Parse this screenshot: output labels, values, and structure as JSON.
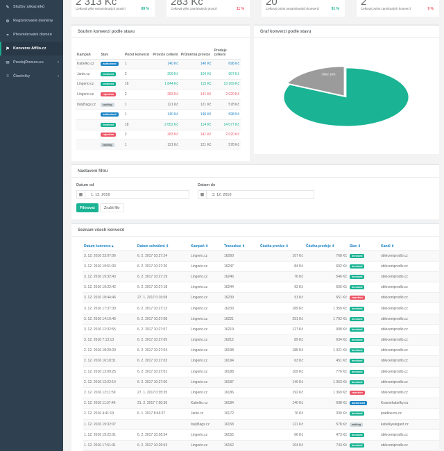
{
  "sidebar": {
    "items": [
      {
        "label": "Služby zákazníků",
        "icon": "wrench-icon",
        "glyph": "✎"
      },
      {
        "label": "Registrované domény",
        "icon": "globe-icon",
        "glyph": "⊕"
      },
      {
        "label": "Přesměrování domén",
        "icon": "link-icon",
        "glyph": "⚭"
      },
      {
        "label": "Konverze Affilo.cz",
        "icon": "flag-icon",
        "glyph": "⚑"
      },
      {
        "label": "ProdejDomen.eu",
        "icon": "cart-icon",
        "glyph": "✉"
      },
      {
        "label": "Číselníky",
        "icon": "list-icon",
        "glyph": "≡"
      }
    ],
    "chevron": "‹"
  },
  "stats": [
    {
      "value": "2 313 Kč",
      "label": "Celková výše nezamítnutých provizí",
      "pct": "89 %",
      "pct_color": "#1ab394"
    },
    {
      "value": "283 Kč",
      "label": "Celková výše zamítnutých provizí",
      "pct": "11 %",
      "pct_color": "#ed5565"
    },
    {
      "value": "20",
      "label": "Celkový počet nezamítnutých konverzí",
      "pct": "91 %",
      "pct_color": "#1ab394"
    },
    {
      "value": "2",
      "label": "Celkový počet zamítnutých konverzí",
      "pct": "9 %",
      "pct_color": "#ed5565"
    }
  ],
  "summary": {
    "title": "Souhrn konverzí podle stavu",
    "headers": [
      "Kampaň",
      "Stav",
      "Počet konverzí",
      "Provize celkem",
      "Průměrná provize",
      "Prodeje celkem"
    ],
    "rows": [
      {
        "campaign": "Kabelko.cz",
        "status": "authorized",
        "count": "1",
        "commission": "140 Kč",
        "avg": "140 Kč",
        "sales": "698 Kč",
        "color": "blue"
      },
      {
        "campaign": "Janie.cz",
        "status": "invoiced",
        "count": "2",
        "commission": "209 Kč",
        "avg": "104 Kč",
        "sales": "907 Kč",
        "color": "teal"
      },
      {
        "campaign": "Lingerio.cz",
        "status": "invoiced",
        "count": "16",
        "commission": "1 844 Kč",
        "avg": "115 Kč",
        "sales": "13 169 Kč",
        "color": "teal"
      },
      {
        "campaign": "Lingerio.cz",
        "status": "rejection",
        "count": "2",
        "commission": "283 Kč",
        "avg": "141 Kč",
        "sales": "2 020 Kč",
        "color": "red"
      },
      {
        "campaign": "ItalyBags.cz",
        "status": "waiting",
        "count": "1",
        "commission": "121 Kč",
        "avg": "121 Kč",
        "sales": "578 Kč",
        "color": "plain"
      },
      {
        "campaign": "",
        "status": "authorized",
        "count": "1",
        "commission": "140 Kč",
        "avg": "140 Kč",
        "sales": "698 Kč",
        "color": "blue"
      },
      {
        "campaign": "",
        "status": "invoiced",
        "count": "18",
        "commission": "2 052 Kč",
        "avg": "114 Kč",
        "sales": "14 077 Kč",
        "color": "teal"
      },
      {
        "campaign": "",
        "status": "rejection",
        "count": "2",
        "commission": "283 Kč",
        "avg": "141 Kč",
        "sales": "2 020 Kč",
        "color": "red"
      },
      {
        "campaign": "",
        "status": "waiting",
        "count": "1",
        "commission": "121 Kč",
        "avg": "121 Kč",
        "sales": "578 Kč",
        "color": "plain"
      }
    ]
  },
  "chart": {
    "title": "Graf konverzí podle stavu",
    "colors": {
      "invoiced": "#1ab394",
      "waiting": "#9b9b9b",
      "authorized": "#1c84c6",
      "rejection": "#ed5565"
    }
  },
  "chart_data": {
    "type": "pie",
    "slices": [
      {
        "label": "Invoiced",
        "value": 82,
        "display": "invoiced 82%"
      },
      {
        "label": "Other",
        "value": 18,
        "display": "Other 18%"
      }
    ]
  },
  "filter": {
    "title": "Nastavení filtru",
    "from_label": "Datum od",
    "from_value": "1. 12. 2016",
    "to_label": "Datum do",
    "to_value": "3. 12. 2016",
    "submit": "Filtrovat",
    "reset": "Zrušit filtr",
    "cal_glyph": "▦"
  },
  "conversions": {
    "title": "Seznam všech konverzí",
    "headers": [
      "Datum konverze ▴",
      "Datum schválení ⇕",
      "Kampaň ⇕",
      "Transakce ⇕",
      "Částka provize ⇕",
      "Částka prodeje ⇕",
      "Stav ⇕",
      "Kanál ⇕"
    ],
    "rows": [
      [
        "3. 12. 2016 23:07:06",
        "6. 2. 2017 10:27:24",
        "Lingerio.cz",
        "16260",
        "107 Kč",
        "768 Kč",
        "invoiced",
        "obleceniprodlo.cz"
      ],
      [
        "3. 12. 2016 19:51:03",
        "6. 2. 2017 10:27:20",
        "Lingerio.cz",
        "16247",
        "84 Kč",
        "602 Kč",
        "invoiced",
        "obleceniprodlo.cz"
      ],
      [
        "3. 12. 2016 19:32:43",
        "6. 2. 2017 10:27:19",
        "Lingerio.cz",
        "16246",
        "76 Kč",
        "546 Kč",
        "invoiced",
        "obleceniprodlo.cz"
      ],
      [
        "3. 12. 2016 19:22:42",
        "6. 2. 2017 10:27:18",
        "Lingerio.cz",
        "16244",
        "93 Kč",
        "666 Kč",
        "invoiced",
        "obleceniprodlo.cz"
      ],
      [
        "3. 12. 2016 18:44:46",
        "27. 1. 2017 0:16:08",
        "Lingerio.cz",
        "16239",
        "91 Kč",
        "651 Kč",
        "rejection",
        "obleceniprodlo.cz"
      ],
      [
        "3. 12. 2016 17:37:30",
        "6. 2. 2017 10:27:12",
        "Lingerio.cz",
        "16233",
        "189 Kč",
        "1 350 Kč",
        "invoiced",
        "obleceniprodlo.cz"
      ],
      [
        "3. 12. 2016 14:10:45",
        "6. 2. 2017 10:27:08",
        "Lingerio.cz",
        "16221",
        "251 Kč",
        "1 792 Kč",
        "invoiced",
        "obleceniprodlo.cz"
      ],
      [
        "3. 12. 2016 12:32:55",
        "6. 2. 2017 10:27:07",
        "Lingerio.cz",
        "16219",
        "127 Kč",
        "908 Kč",
        "invoiced",
        "obleceniprodlo.cz"
      ],
      [
        "3. 12. 2016 7:13:13",
        "6. 2. 2017 10:27:05",
        "Lingerio.cz",
        "16212",
        "89 Kč",
        "634 Kč",
        "invoiced",
        "obleceniprodlo.cz"
      ],
      [
        "2. 12. 2016 18:20:20",
        "6. 2. 2017 10:27:04",
        "Lingerio.cz",
        "16198",
        "185 Kč",
        "1 321 Kč",
        "invoiced",
        "obleceniprodlo.cz"
      ],
      [
        "2. 12. 2016 16:18:31",
        "6. 2. 2017 10:27:03",
        "Lingerio.cz",
        "16194",
        "63 Kč",
        "451 Kč",
        "invoiced",
        "obleceniprodlo.cz"
      ],
      [
        "2. 12. 2016 13:09:25",
        "6. 2. 2017 10:27:01",
        "Lingerio.cz",
        "16188",
        "109 Kč",
        "776 Kč",
        "invoiced",
        "obleceniprodlo.cz"
      ],
      [
        "2. 12. 2016 12:22:14",
        "6. 2. 2017 10:27:00",
        "Lingerio.cz",
        "16187",
        "149 Kč",
        "1 063 Kč",
        "invoiced",
        "obleceniprodlo.cz"
      ],
      [
        "2. 12. 2016 12:11:59",
        "27. 1. 2017 0:35:35",
        "Lingerio.cz",
        "16186",
        "192 Kč",
        "1 369 Kč",
        "rejection",
        "obleceniprodlo.cz"
      ],
      [
        "2. 12. 2016 11:37:46",
        "21. 2. 2017 7:50:36",
        "Kabelko.cz",
        "16184",
        "140 Kč",
        "698 Kč",
        "authorized",
        "Krasnekabelky.eu"
      ],
      [
        "2. 12. 2016 4:41:19",
        "6. 1. 2017 8:46:27",
        "Janie.cz",
        "16172",
        "76 Kč",
        "330 Kč",
        "invoiced",
        "pradloeros.cz"
      ],
      [
        "1. 12. 2016 19:32:07",
        "",
        "ItalyBags.cz",
        "16158",
        "121 Kč",
        "578 Kč",
        "waiting",
        "kabelkyelegant.cz"
      ],
      [
        "1. 12. 2016 19:22:01",
        "6. 2. 2017 10:26:54",
        "Lingerio.cz",
        "16155",
        "66 Kč",
        "473 Kč",
        "invoiced",
        "obleceniprodlo.cz"
      ],
      [
        "1. 12. 2016 17:51:31",
        "6. 2. 2017 10:26:53",
        "Lingerio.cz",
        "16152",
        "104 Kč",
        "743 Kč",
        "invoiced",
        "obleceniprodlo.cz"
      ],
      [
        "1. 12. 2016 14:53:17",
        "6. 2. 2017 10:26:51",
        "Lingerio.cz",
        "16149",
        "62 Kč",
        "441 Kč",
        "invoiced",
        "obleceniprodlo.cz"
      ]
    ]
  }
}
